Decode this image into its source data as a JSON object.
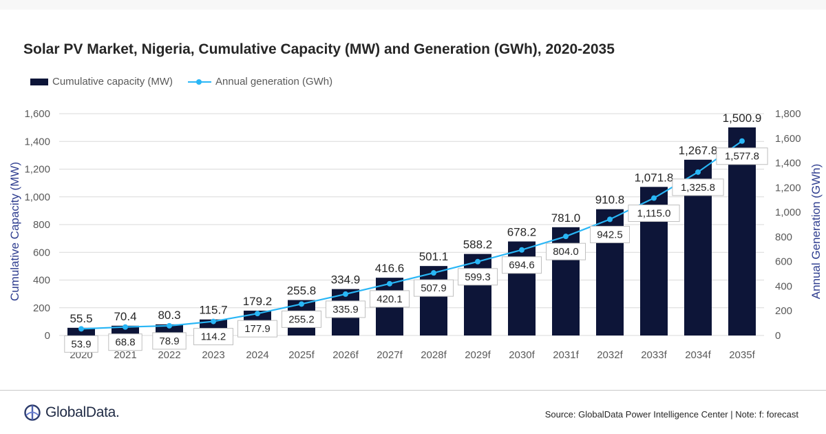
{
  "title": "Solar PV Market, Nigeria, Cumulative Capacity (MW) and Generation (GWh), 2020-2035",
  "legend": {
    "bar_label": "Cumulative capacity (MW)",
    "line_label": "Annual generation (GWh)"
  },
  "footer": {
    "logo_text": "GlobalData.",
    "source": "Source: GlobalData Power Intelligence Center | Note: f: forecast"
  },
  "colors": {
    "bar": "#0d1538",
    "line": "#29b6f6",
    "left_axis_title": "#2e3d8f",
    "right_axis_title": "#2e3d8f"
  },
  "chart_data": {
    "type": "bar",
    "categories": [
      "2020",
      "2021",
      "2022",
      "2023",
      "2024",
      "2025f",
      "2026f",
      "2027f",
      "2028f",
      "2029f",
      "2030f",
      "2031f",
      "2032f",
      "2033f",
      "2034f",
      "2035f"
    ],
    "series": [
      {
        "name": "Cumulative capacity (MW)",
        "type": "bar",
        "axis": "left",
        "values": [
          55.5,
          70.4,
          80.3,
          115.7,
          179.2,
          255.8,
          334.9,
          416.6,
          501.1,
          588.2,
          678.2,
          781.0,
          910.8,
          1071.8,
          1267.8,
          1500.9
        ],
        "labels": [
          "55.5",
          "70.4",
          "80.3",
          "115.7",
          "179.2",
          "255.8",
          "334.9",
          "416.6",
          "501.1",
          "588.2",
          "678.2",
          "781.0",
          "910.8",
          "1,071.8",
          "1,267.8",
          "1,500.9"
        ]
      },
      {
        "name": "Annual generation (GWh)",
        "type": "line",
        "axis": "right",
        "values": [
          53.9,
          68.8,
          78.9,
          114.2,
          177.9,
          255.2,
          335.9,
          420.1,
          507.9,
          599.3,
          694.6,
          804.0,
          942.5,
          1115.0,
          1325.8,
          1577.8
        ],
        "labels": [
          "53.9",
          "68.8",
          "78.9",
          "114.2",
          "177.9",
          "255.2",
          "335.9",
          "420.1",
          "507.9",
          "599.3",
          "694.6",
          "804.0",
          "942.5",
          "1,115.0",
          "1,325.8",
          "1,577.8"
        ]
      }
    ],
    "y_left": {
      "label": "Cumulative Capacity (MW)",
      "range": [
        0,
        1600
      ],
      "ticks": [
        "0",
        "200",
        "400",
        "600",
        "800",
        "1,000",
        "1,200",
        "1,400",
        "1,600"
      ]
    },
    "y_right": {
      "label": "Annual Generation (GWh)",
      "range": [
        0,
        1800
      ],
      "ticks": [
        "0",
        "200",
        "400",
        "600",
        "800",
        "1,000",
        "1,200",
        "1,400",
        "1,600",
        "1,800"
      ]
    },
    "grid": true,
    "legend_position": "top-left"
  }
}
